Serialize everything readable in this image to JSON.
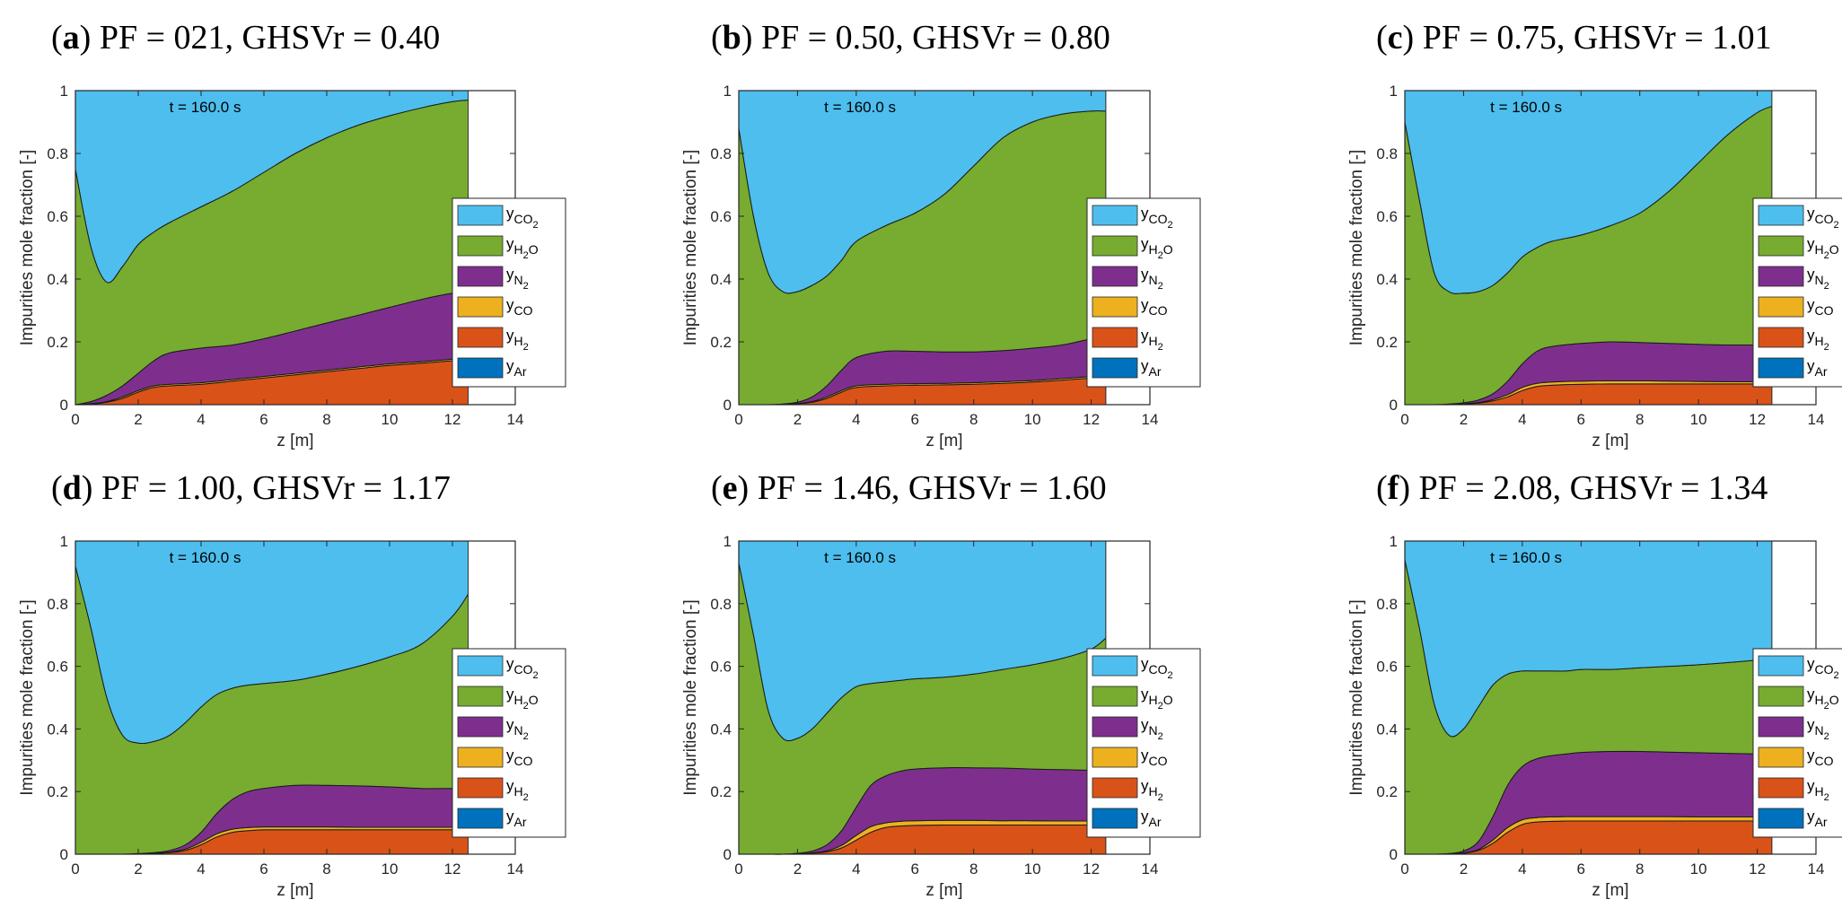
{
  "figure": {
    "title": ""
  },
  "legend_entries": [
    {
      "key": "CO2",
      "sub": "CO",
      "sub2": "2",
      "color": "#4dbeee"
    },
    {
      "key": "H2O",
      "sub": "H",
      "sub2": "2",
      "sub3": "O",
      "color": "#77ac30"
    },
    {
      "key": "N2",
      "sub": "N",
      "sub2": "2",
      "color": "#7e2f8e"
    },
    {
      "key": "CO",
      "sub": "CO",
      "color": "#edb120"
    },
    {
      "key": "H2",
      "sub": "H",
      "sub2": "2",
      "color": "#d95319"
    },
    {
      "key": "Ar",
      "sub": "Ar",
      "color": "#0072bd"
    }
  ],
  "legend_symbol": "y",
  "chart_data": [
    {
      "type": "area",
      "panel": "a",
      "title_letter": "a",
      "title_text": " PF = 021, GHSVr = 0.40",
      "annotation": "t = 160.0 s",
      "xlabel": "z [m]",
      "ylabel": "Impurities mole fraction [-]",
      "xlim": [
        0,
        14
      ],
      "ylim": [
        0,
        1
      ],
      "x_end": 12.5,
      "xticks": [
        0,
        2,
        4,
        6,
        8,
        10,
        12,
        14
      ],
      "yticks": [
        0,
        0.2,
        0.4,
        0.6,
        0.8,
        1
      ],
      "ytick_labels": [
        "0",
        "0.2",
        "0.4",
        "0.6",
        "0.8",
        "1"
      ],
      "boundaries": {
        "z": [
          0,
          0.5,
          1,
          1.5,
          2,
          2.5,
          3,
          4,
          5,
          6,
          7,
          8,
          9,
          10,
          11,
          12,
          12.5
        ],
        "H2": [
          0,
          0.002,
          0.008,
          0.02,
          0.04,
          0.055,
          0.06,
          0.065,
          0.075,
          0.085,
          0.095,
          0.105,
          0.115,
          0.125,
          0.132,
          0.14,
          0.145
        ],
        "CO": [
          0,
          0.003,
          0.01,
          0.025,
          0.045,
          0.06,
          0.065,
          0.07,
          0.08,
          0.09,
          0.1,
          0.11,
          0.12,
          0.13,
          0.137,
          0.145,
          0.15
        ],
        "N2": [
          0,
          0.01,
          0.03,
          0.06,
          0.1,
          0.14,
          0.165,
          0.18,
          0.19,
          0.21,
          0.235,
          0.26,
          0.285,
          0.31,
          0.335,
          0.355,
          0.36
        ],
        "H2O": [
          0.75,
          0.5,
          0.39,
          0.44,
          0.51,
          0.55,
          0.58,
          0.63,
          0.68,
          0.74,
          0.8,
          0.85,
          0.89,
          0.92,
          0.945,
          0.965,
          0.97
        ]
      }
    },
    {
      "type": "area",
      "panel": "b",
      "title_letter": "b",
      "title_text": " PF = 0.50, GHSVr = 0.80",
      "annotation": "t = 160.0 s",
      "xlabel": "z [m]",
      "ylabel": "Impurities mole fraction [-]",
      "xlim": [
        0,
        14
      ],
      "ylim": [
        0,
        1
      ],
      "x_end": 12.5,
      "xticks": [
        0,
        2,
        4,
        6,
        8,
        10,
        12,
        14
      ],
      "yticks": [
        0,
        0.2,
        0.4,
        0.6,
        0.8,
        1
      ],
      "ytick_labels": [
        "0",
        "0.2",
        "0.4",
        "0.6",
        "0.8",
        "1"
      ],
      "boundaries": {
        "z": [
          0,
          0.5,
          1,
          1.5,
          2,
          2.5,
          3,
          3.5,
          4,
          5,
          6,
          7,
          8,
          9,
          10,
          11,
          12,
          12.5
        ],
        "H2": [
          0,
          0,
          0,
          0.001,
          0.003,
          0.008,
          0.02,
          0.04,
          0.055,
          0.06,
          0.062,
          0.063,
          0.065,
          0.068,
          0.072,
          0.078,
          0.085,
          0.09
        ],
        "CO": [
          0,
          0,
          0,
          0.001,
          0.004,
          0.01,
          0.025,
          0.045,
          0.06,
          0.065,
          0.067,
          0.068,
          0.07,
          0.073,
          0.077,
          0.083,
          0.09,
          0.095
        ],
        "N2": [
          0,
          0,
          0,
          0.002,
          0.008,
          0.025,
          0.06,
          0.11,
          0.15,
          0.17,
          0.17,
          0.168,
          0.168,
          0.172,
          0.18,
          0.19,
          0.21,
          0.22
        ],
        "H2O": [
          0.88,
          0.6,
          0.42,
          0.36,
          0.36,
          0.38,
          0.41,
          0.46,
          0.52,
          0.57,
          0.61,
          0.67,
          0.76,
          0.85,
          0.9,
          0.925,
          0.935,
          0.935
        ]
      }
    },
    {
      "type": "area",
      "panel": "c",
      "title_letter": "c",
      "title_text": " PF = 0.75, GHSVr = 1.01",
      "annotation": "t = 160.0 s",
      "xlabel": "z [m]",
      "ylabel": "Impurities mole fraction [-]",
      "xlim": [
        0,
        14
      ],
      "ylim": [
        0,
        1
      ],
      "x_end": 12.5,
      "xticks": [
        0,
        2,
        4,
        6,
        8,
        10,
        12,
        14
      ],
      "yticks": [
        0,
        0.2,
        0.4,
        0.6,
        0.8,
        1
      ],
      "ytick_labels": [
        "0",
        "0.2",
        "0.4",
        "0.6",
        "0.8",
        "1"
      ],
      "boundaries": {
        "z": [
          0,
          0.5,
          1,
          1.5,
          2,
          2.5,
          3,
          3.5,
          4,
          4.5,
          5,
          6,
          7,
          8,
          9,
          10,
          11,
          12,
          12.5
        ],
        "H2": [
          0,
          0,
          0,
          0.001,
          0.002,
          0.005,
          0.012,
          0.025,
          0.045,
          0.058,
          0.062,
          0.065,
          0.066,
          0.066,
          0.066,
          0.066,
          0.066,
          0.066,
          0.066
        ],
        "CO": [
          0,
          0,
          0,
          0.001,
          0.003,
          0.007,
          0.016,
          0.032,
          0.055,
          0.068,
          0.072,
          0.075,
          0.076,
          0.076,
          0.075,
          0.074,
          0.073,
          0.073,
          0.073
        ],
        "N2": [
          0,
          0,
          0,
          0.002,
          0.006,
          0.015,
          0.035,
          0.075,
          0.13,
          0.17,
          0.185,
          0.195,
          0.2,
          0.198,
          0.195,
          0.192,
          0.19,
          0.19,
          0.19
        ],
        "H2O": [
          0.9,
          0.65,
          0.42,
          0.36,
          0.355,
          0.36,
          0.38,
          0.42,
          0.47,
          0.5,
          0.52,
          0.54,
          0.57,
          0.61,
          0.68,
          0.77,
          0.86,
          0.93,
          0.95
        ]
      }
    },
    {
      "type": "area",
      "panel": "d",
      "title_letter": "d",
      "title_text": " PF = 1.00, GHSVr = 1.17",
      "annotation": "t = 160.0 s",
      "xlabel": "z [m]",
      "ylabel": "Impurities mole fraction [-]",
      "xlim": [
        0,
        14
      ],
      "ylim": [
        0,
        1
      ],
      "x_end": 12.5,
      "xticks": [
        0,
        2,
        4,
        6,
        8,
        10,
        12,
        14
      ],
      "yticks": [
        0,
        0.2,
        0.4,
        0.6,
        0.8,
        1
      ],
      "ytick_labels": [
        "0",
        "0.2",
        "0.4",
        "0.6",
        "0.8",
        "1"
      ],
      "boundaries": {
        "z": [
          0,
          0.5,
          1,
          1.5,
          2,
          2.5,
          3,
          3.5,
          4,
          4.5,
          5,
          5.5,
          6,
          7,
          8,
          9,
          10,
          11,
          12,
          12.5
        ],
        "H2": [
          0,
          0,
          0,
          0,
          0.001,
          0.002,
          0.005,
          0.012,
          0.03,
          0.055,
          0.07,
          0.075,
          0.078,
          0.078,
          0.078,
          0.078,
          0.078,
          0.078,
          0.078,
          0.078
        ],
        "CO": [
          0,
          0,
          0,
          0,
          0.001,
          0.003,
          0.007,
          0.016,
          0.038,
          0.065,
          0.08,
          0.085,
          0.087,
          0.087,
          0.087,
          0.086,
          0.086,
          0.086,
          0.086,
          0.086
        ],
        "N2": [
          0,
          0,
          0,
          0,
          0.002,
          0.005,
          0.012,
          0.03,
          0.07,
          0.13,
          0.175,
          0.2,
          0.21,
          0.22,
          0.22,
          0.218,
          0.215,
          0.21,
          0.21,
          0.21
        ],
        "H2O": [
          0.92,
          0.72,
          0.5,
          0.38,
          0.355,
          0.36,
          0.38,
          0.42,
          0.47,
          0.51,
          0.53,
          0.54,
          0.545,
          0.555,
          0.575,
          0.6,
          0.63,
          0.67,
          0.76,
          0.83
        ]
      }
    },
    {
      "type": "area",
      "panel": "e",
      "title_letter": "e",
      "title_text": " PF = 1.46, GHSVr = 1.60",
      "annotation": "t = 160.0 s",
      "xlabel": "z [m]",
      "ylabel": "Impurities mole fraction [-]",
      "xlim": [
        0,
        14
      ],
      "ylim": [
        0,
        1
      ],
      "x_end": 12.5,
      "xticks": [
        0,
        2,
        4,
        6,
        8,
        10,
        12,
        14
      ],
      "yticks": [
        0,
        0.2,
        0.4,
        0.6,
        0.8,
        1
      ],
      "ytick_labels": [
        "0",
        "0.2",
        "0.4",
        "0.6",
        "0.8",
        "1"
      ],
      "boundaries": {
        "z": [
          0,
          0.5,
          1,
          1.5,
          2,
          2.5,
          3,
          3.5,
          4,
          4.5,
          5,
          5.5,
          6,
          7,
          8,
          9,
          10,
          11,
          12,
          12.5
        ],
        "H2": [
          0,
          0,
          0,
          0,
          0.001,
          0.003,
          0.008,
          0.02,
          0.045,
          0.07,
          0.085,
          0.09,
          0.092,
          0.093,
          0.093,
          0.093,
          0.093,
          0.093,
          0.093,
          0.093
        ],
        "CO": [
          0,
          0,
          0,
          0,
          0.001,
          0.004,
          0.011,
          0.028,
          0.06,
          0.088,
          0.1,
          0.105,
          0.107,
          0.108,
          0.108,
          0.107,
          0.107,
          0.106,
          0.106,
          0.106
        ],
        "N2": [
          0,
          0,
          0,
          0,
          0.003,
          0.01,
          0.03,
          0.075,
          0.15,
          0.22,
          0.25,
          0.265,
          0.272,
          0.276,
          0.276,
          0.275,
          0.272,
          0.27,
          0.268,
          0.268
        ],
        "H2O": [
          0.93,
          0.7,
          0.46,
          0.37,
          0.37,
          0.4,
          0.45,
          0.5,
          0.535,
          0.545,
          0.55,
          0.555,
          0.56,
          0.565,
          0.575,
          0.59,
          0.605,
          0.625,
          0.655,
          0.69
        ]
      }
    },
    {
      "type": "area",
      "panel": "f",
      "title_letter": "f",
      "title_text": " PF = 2.08, GHSVr = 1.34",
      "annotation": "t = 160.0 s",
      "xlabel": "z [m]",
      "ylabel": "Impurities mole fraction [-]",
      "xlim": [
        0,
        14
      ],
      "ylim": [
        0,
        1
      ],
      "x_end": 12.5,
      "xticks": [
        0,
        2,
        4,
        6,
        8,
        10,
        12,
        14
      ],
      "yticks": [
        0,
        0.2,
        0.4,
        0.6,
        0.8,
        1
      ],
      "ytick_labels": [
        "0",
        "0.2",
        "0.4",
        "0.6",
        "0.8",
        "1"
      ],
      "boundaries": {
        "z": [
          0,
          0.5,
          1,
          1.5,
          2,
          2.5,
          3,
          3.5,
          4,
          4.5,
          5,
          5.5,
          6,
          7,
          8,
          9,
          10,
          11,
          12,
          12.5
        ],
        "H2": [
          0,
          0,
          0,
          0.001,
          0.003,
          0.012,
          0.035,
          0.07,
          0.095,
          0.103,
          0.105,
          0.106,
          0.106,
          0.106,
          0.106,
          0.106,
          0.106,
          0.106,
          0.106,
          0.106
        ],
        "CO": [
          0,
          0,
          0,
          0.001,
          0.004,
          0.015,
          0.045,
          0.085,
          0.11,
          0.117,
          0.119,
          0.12,
          0.12,
          0.12,
          0.12,
          0.12,
          0.119,
          0.119,
          0.119,
          0.119
        ],
        "N2": [
          0,
          0,
          0,
          0.002,
          0.01,
          0.04,
          0.12,
          0.22,
          0.28,
          0.305,
          0.315,
          0.32,
          0.325,
          0.328,
          0.328,
          0.326,
          0.324,
          0.322,
          0.32,
          0.32
        ],
        "H2O": [
          0.94,
          0.72,
          0.48,
          0.38,
          0.4,
          0.47,
          0.54,
          0.575,
          0.585,
          0.585,
          0.585,
          0.585,
          0.59,
          0.59,
          0.595,
          0.6,
          0.605,
          0.612,
          0.62,
          0.625
        ]
      }
    }
  ]
}
